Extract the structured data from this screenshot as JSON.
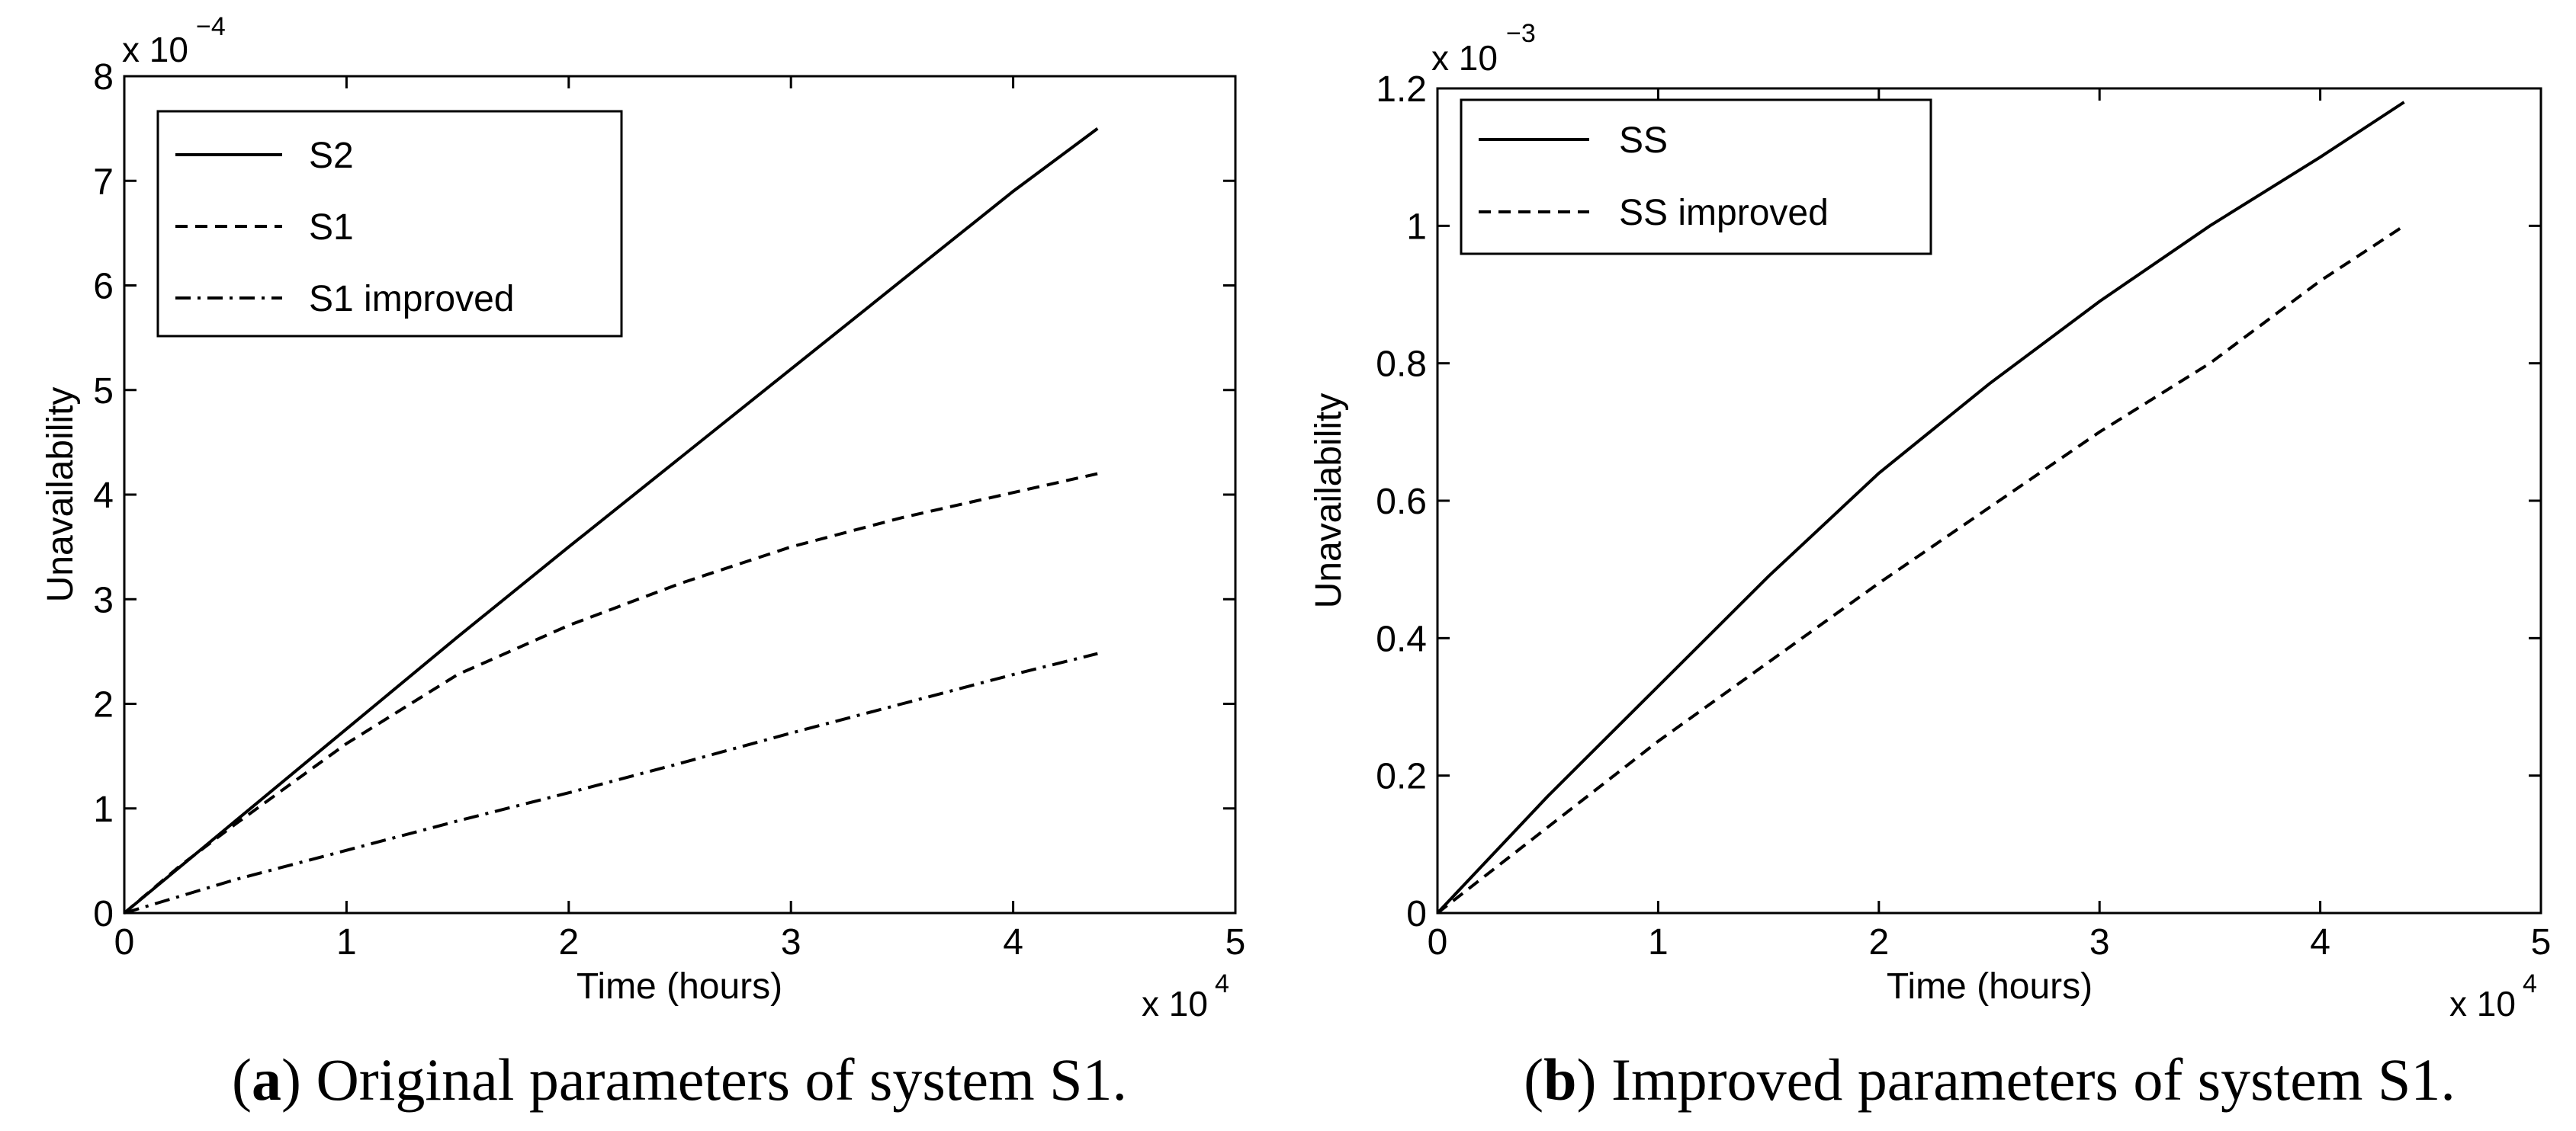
{
  "chart_data": [
    {
      "id": "a",
      "type": "line",
      "caption_letter": "a",
      "caption_text": "Original parameters of system S1.",
      "xlabel": "Time (hours)",
      "ylabel": "Unavailability",
      "x_exponent_label": "x 10",
      "x_exponent": "4",
      "y_exponent_label": "x 10",
      "y_exponent": "−4",
      "xlim": [
        0,
        5
      ],
      "ylim": [
        0,
        8
      ],
      "xticks": [
        0,
        1,
        2,
        3,
        4,
        5
      ],
      "yticks": [
        0,
        1,
        2,
        3,
        4,
        5,
        6,
        7,
        8
      ],
      "xtick_labels": [
        "0",
        "1",
        "2",
        "3",
        "4",
        "5"
      ],
      "ytick_labels": [
        "0",
        "1",
        "2",
        "3",
        "4",
        "5",
        "6",
        "7",
        "8"
      ],
      "legend_position": "top-left",
      "series": [
        {
          "name": "S2",
          "style": "solid",
          "x": [
            0,
            0.5,
            1,
            1.5,
            2,
            2.5,
            3,
            3.5,
            4,
            4.38
          ],
          "values": [
            0,
            0.88,
            1.76,
            2.64,
            3.5,
            4.35,
            5.2,
            6.05,
            6.9,
            7.5
          ]
        },
        {
          "name": "S1",
          "style": "dashed",
          "x": [
            0,
            0.25,
            0.5,
            1,
            1.5,
            2,
            2.5,
            3,
            3.5,
            4,
            4.38
          ],
          "values": [
            0,
            0.45,
            0.85,
            1.62,
            2.28,
            2.75,
            3.15,
            3.5,
            3.78,
            4.02,
            4.2
          ]
        },
        {
          "name": "S1 improved",
          "style": "dashdot",
          "x": [
            0,
            0.5,
            1,
            1.5,
            2,
            2.5,
            3,
            3.5,
            4,
            4.38
          ],
          "values": [
            0,
            0.32,
            0.6,
            0.88,
            1.15,
            1.43,
            1.72,
            2.0,
            2.28,
            2.48
          ]
        }
      ]
    },
    {
      "id": "b",
      "type": "line",
      "caption_letter": "b",
      "caption_text": "Improved parameters of system S1.",
      "xlabel": "Time (hours)",
      "ylabel": "Unavailability",
      "x_exponent_label": "x 10",
      "x_exponent": "4",
      "y_exponent_label": "x 10",
      "y_exponent": "−3",
      "xlim": [
        0,
        5
      ],
      "ylim": [
        0,
        1.2
      ],
      "xticks": [
        0,
        1,
        2,
        3,
        4,
        5
      ],
      "yticks": [
        0,
        0.2,
        0.4,
        0.6,
        0.8,
        1.0,
        1.2
      ],
      "xtick_labels": [
        "0",
        "1",
        "2",
        "3",
        "4",
        "5"
      ],
      "ytick_labels": [
        "0",
        "0.2",
        "0.4",
        "0.6",
        "0.8",
        "1",
        "1.2"
      ],
      "legend_position": "top-left",
      "series": [
        {
          "name": "SS",
          "style": "solid",
          "x": [
            0,
            0.5,
            1,
            1.5,
            2,
            2.5,
            3,
            3.5,
            4,
            4.38
          ],
          "values": [
            0,
            0.17,
            0.33,
            0.49,
            0.64,
            0.77,
            0.89,
            1.0,
            1.1,
            1.18
          ]
        },
        {
          "name": "SS improved",
          "style": "dashed",
          "x": [
            0,
            0.5,
            1,
            1.5,
            2,
            2.5,
            3,
            3.5,
            4,
            4.38
          ],
          "values": [
            0,
            0.125,
            0.25,
            0.365,
            0.48,
            0.59,
            0.7,
            0.8,
            0.92,
            1.0
          ]
        }
      ]
    }
  ]
}
